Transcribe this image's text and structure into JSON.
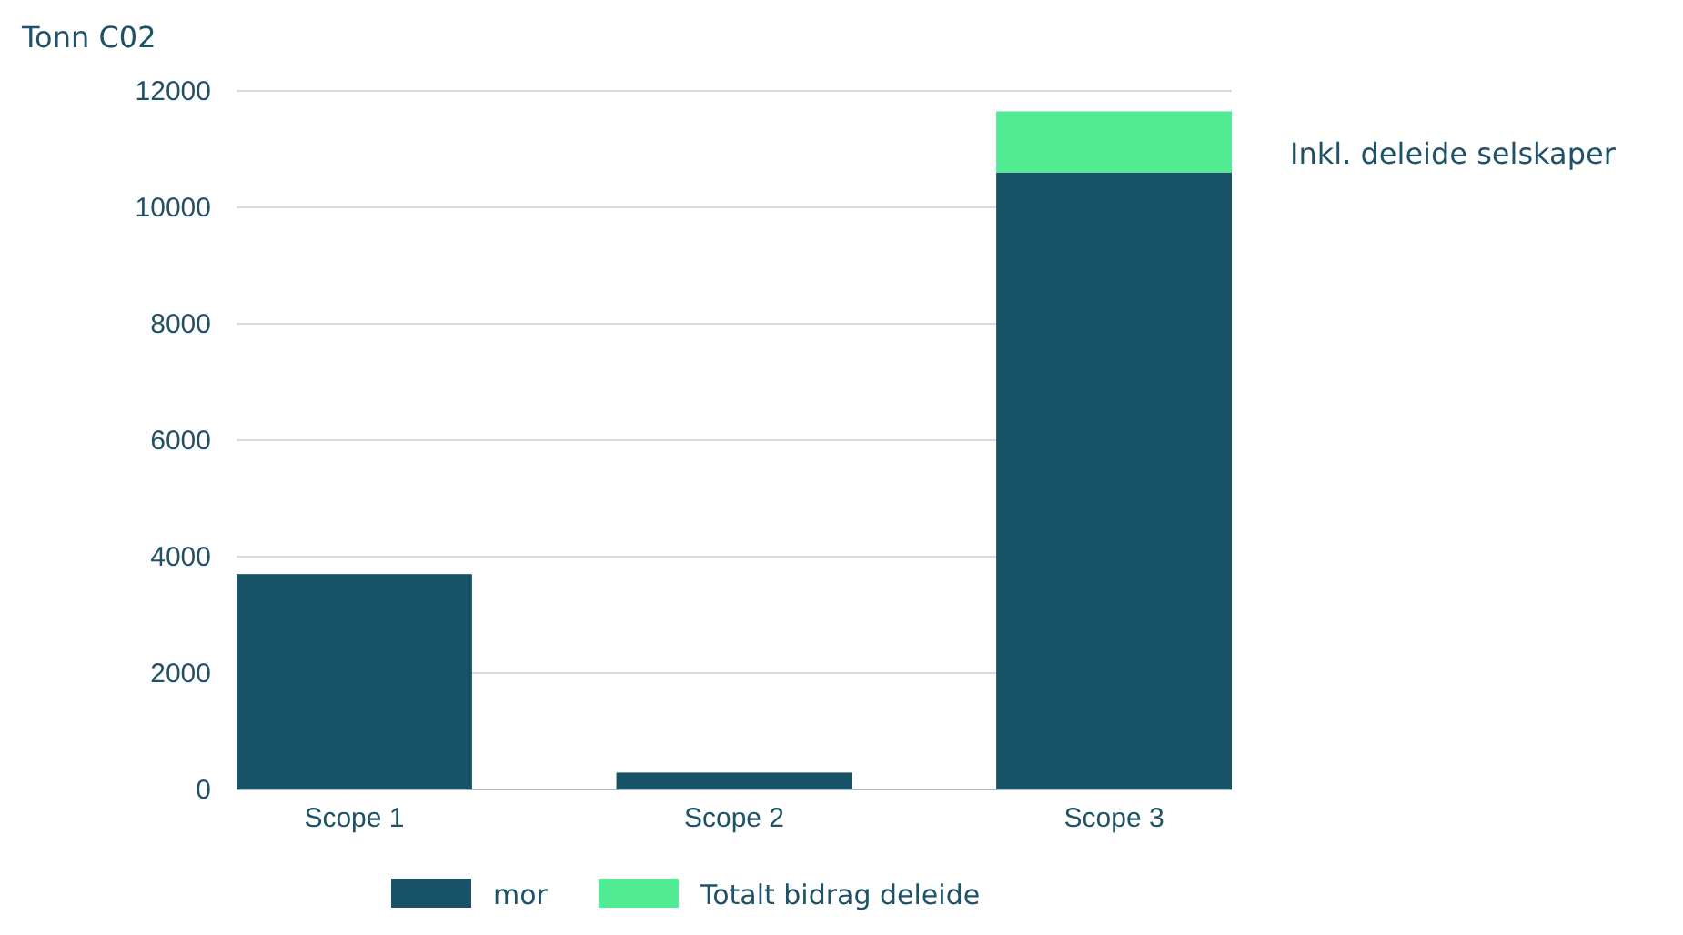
{
  "chart_data": {
    "type": "bar",
    "stacked": true,
    "ylabel": "Tonn C02",
    "categories": [
      "Scope 1",
      "Scope 2",
      "Scope 3"
    ],
    "series": [
      {
        "name": "mor",
        "color": "#185266",
        "values": [
          3700,
          290,
          10600
        ]
      },
      {
        "name": "Totalt bidrag deleide",
        "color": "#50eb93",
        "values": [
          0,
          0,
          1050
        ]
      }
    ],
    "ylim": [
      0,
      12000
    ],
    "yticks": [
      0,
      2000,
      4000,
      6000,
      8000,
      10000,
      12000
    ],
    "grid": "y",
    "legend": "bottom",
    "annotations": [
      "Inkl. deleide selskaper"
    ]
  }
}
